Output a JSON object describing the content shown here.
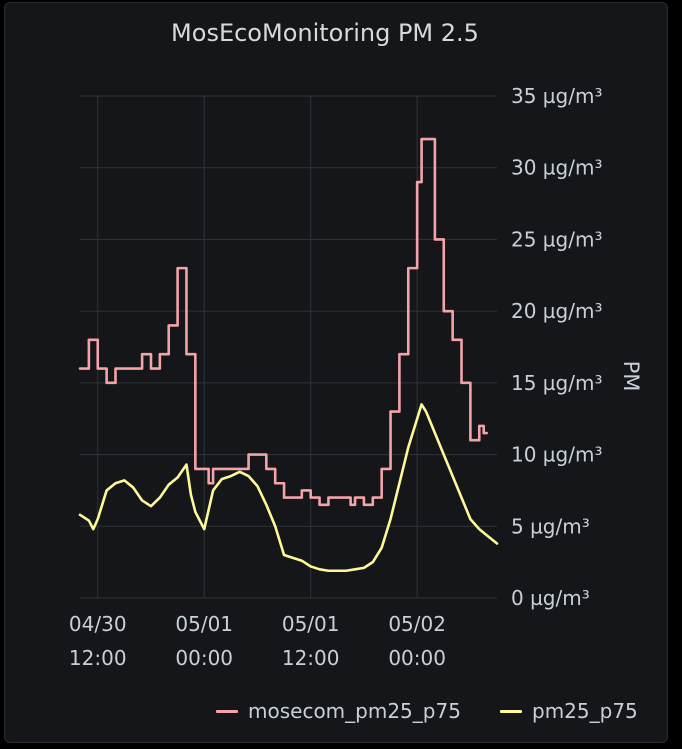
{
  "panel": {
    "title": "MosEcoMonitoring PM 2.5"
  },
  "chart_data": {
    "type": "line",
    "title": "MosEcoMonitoring PM 2.5",
    "ylabel": "PM",
    "ylim": [
      0,
      35
    ],
    "y_ticks": [
      "0 µg/m³",
      "5 µg/m³",
      "10 µg/m³",
      "15 µg/m³",
      "20 µg/m³",
      "25 µg/m³",
      "30 µg/m³",
      "35 µg/m³"
    ],
    "x_ticks": [
      {
        "hour": 12,
        "line1": "04/30",
        "line2": "12:00"
      },
      {
        "hour": 24,
        "line1": "05/01",
        "line2": "00:00"
      },
      {
        "hour": 36,
        "line1": "05/01",
        "line2": "12:00"
      },
      {
        "hour": 48,
        "line1": "05/02",
        "line2": "00:00"
      }
    ],
    "xlim_hours": [
      10,
      57
    ],
    "series": [
      {
        "name": "mosecom_pm25_p75",
        "color": "#f4a3a8",
        "step": true,
        "points": [
          [
            10.0,
            16
          ],
          [
            11.0,
            18
          ],
          [
            12.0,
            16
          ],
          [
            13.0,
            15
          ],
          [
            14.0,
            16
          ],
          [
            15.0,
            16
          ],
          [
            16.0,
            16
          ],
          [
            17.0,
            17
          ],
          [
            18.0,
            16
          ],
          [
            19.0,
            17
          ],
          [
            20.0,
            19
          ],
          [
            21.0,
            23
          ],
          [
            22.0,
            17
          ],
          [
            23.0,
            9
          ],
          [
            24.0,
            9
          ],
          [
            24.5,
            8
          ],
          [
            25.0,
            9
          ],
          [
            26.0,
            9
          ],
          [
            27.0,
            9
          ],
          [
            28.0,
            9
          ],
          [
            29.0,
            10
          ],
          [
            30.0,
            10
          ],
          [
            31.0,
            9
          ],
          [
            32.0,
            8
          ],
          [
            33.0,
            7
          ],
          [
            34.0,
            7
          ],
          [
            35.0,
            7.5
          ],
          [
            36.0,
            7
          ],
          [
            37.0,
            6.5
          ],
          [
            38.0,
            7
          ],
          [
            39.0,
            7
          ],
          [
            40.0,
            7
          ],
          [
            40.5,
            6.5
          ],
          [
            41.0,
            7
          ],
          [
            42.0,
            6.5
          ],
          [
            43.0,
            7
          ],
          [
            44.0,
            9
          ],
          [
            45.0,
            13
          ],
          [
            46.0,
            17
          ],
          [
            47.0,
            23
          ],
          [
            48.0,
            29
          ],
          [
            48.5,
            32
          ],
          [
            49.0,
            32
          ],
          [
            50.0,
            25
          ],
          [
            51.0,
            20
          ],
          [
            52.0,
            18
          ],
          [
            53.0,
            15
          ],
          [
            54.0,
            11
          ],
          [
            55.0,
            12
          ],
          [
            55.5,
            11.5
          ]
        ]
      },
      {
        "name": "pm25_p75",
        "color": "#fff899",
        "step": false,
        "points": [
          [
            10.0,
            5.8
          ],
          [
            11.0,
            5.4
          ],
          [
            11.5,
            4.8
          ],
          [
            12.0,
            5.5
          ],
          [
            13.0,
            7.5
          ],
          [
            14.0,
            8.0
          ],
          [
            15.0,
            8.2
          ],
          [
            16.0,
            7.7
          ],
          [
            17.0,
            6.8
          ],
          [
            18.0,
            6.4
          ],
          [
            19.0,
            7.0
          ],
          [
            20.0,
            7.9
          ],
          [
            21.0,
            8.4
          ],
          [
            22.0,
            9.3
          ],
          [
            22.5,
            7.2
          ],
          [
            23.0,
            6.0
          ],
          [
            24.0,
            4.8
          ],
          [
            25.0,
            7.5
          ],
          [
            26.0,
            8.3
          ],
          [
            27.0,
            8.5
          ],
          [
            28.0,
            8.8
          ],
          [
            29.0,
            8.5
          ],
          [
            30.0,
            7.8
          ],
          [
            31.0,
            6.5
          ],
          [
            32.0,
            5.0
          ],
          [
            33.0,
            3.0
          ],
          [
            34.0,
            2.8
          ],
          [
            35.0,
            2.6
          ],
          [
            36.0,
            2.2
          ],
          [
            37.0,
            2.0
          ],
          [
            38.0,
            1.9
          ],
          [
            39.0,
            1.9
          ],
          [
            40.0,
            1.9
          ],
          [
            41.0,
            2.0
          ],
          [
            42.0,
            2.1
          ],
          [
            43.0,
            2.5
          ],
          [
            44.0,
            3.5
          ],
          [
            45.0,
            5.5
          ],
          [
            46.0,
            8.0
          ],
          [
            47.0,
            10.5
          ],
          [
            48.0,
            12.5
          ],
          [
            48.5,
            13.5
          ],
          [
            49.0,
            13.0
          ],
          [
            50.0,
            11.5
          ],
          [
            51.0,
            10.0
          ],
          [
            52.0,
            8.5
          ],
          [
            53.0,
            7.0
          ],
          [
            54.0,
            5.5
          ],
          [
            55.0,
            4.8
          ],
          [
            56.0,
            4.3
          ],
          [
            57.0,
            3.8
          ]
        ]
      }
    ],
    "grid": true,
    "legend": "bottom-right"
  },
  "legend": {
    "items": [
      {
        "label": "mosecom_pm25_p75",
        "color": "#f4a3a8"
      },
      {
        "label": "pm25_p75",
        "color": "#fff899"
      }
    ]
  }
}
